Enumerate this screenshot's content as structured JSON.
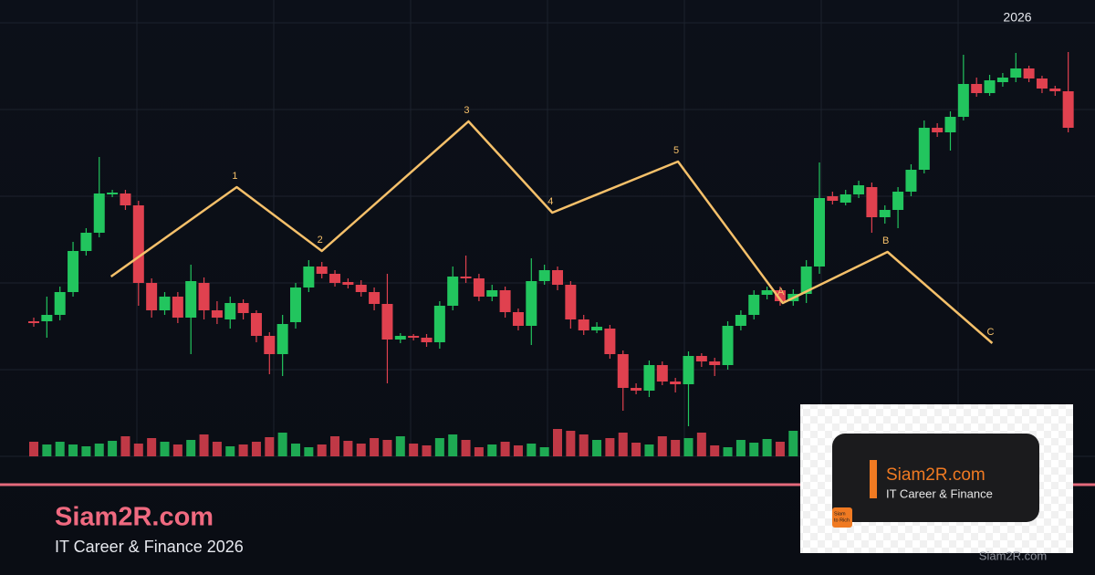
{
  "chart_data": {
    "type": "candlestick",
    "ylim": [
      0,
      500
    ],
    "y2lim": [
      0,
      40
    ],
    "up_color": "#22c55e",
    "down_color": "#e0414f",
    "year_label": "2026",
    "open": [
      148,
      148,
      155,
      180,
      225,
      245,
      287,
      288,
      275,
      190,
      160,
      175,
      152,
      190,
      160,
      150,
      168,
      157,
      132,
      112,
      147,
      185,
      208,
      200,
      191,
      188,
      180,
      167,
      128,
      132,
      130,
      125,
      165,
      197,
      195,
      175,
      182,
      158,
      143,
      192,
      204,
      188,
      150,
      138,
      140,
      112,
      75,
      72,
      100,
      82,
      79,
      110,
      104,
      100,
      143,
      155,
      177,
      182,
      170,
      178,
      208,
      285,
      278,
      287,
      295,
      262,
      270,
      290,
      314,
      360,
      355,
      372,
      408,
      398,
      410,
      415,
      425,
      414,
      403,
      400
    ],
    "high": [
      152,
      175,
      186,
      235,
      250,
      328,
      292,
      292,
      280,
      195,
      180,
      180,
      210,
      196,
      170,
      175,
      172,
      160,
      136,
      155,
      190,
      215,
      213,
      204,
      195,
      193,
      185,
      200,
      135,
      134,
      134,
      170,
      208,
      220,
      200,
      188,
      186,
      162,
      217,
      210,
      208,
      192,
      155,
      147,
      144,
      116,
      80,
      105,
      104,
      86,
      115,
      113,
      108,
      148,
      160,
      182,
      186,
      186,
      183,
      215,
      322,
      290,
      292,
      302,
      300,
      275,
      295,
      320,
      368,
      365,
      378,
      440,
      415,
      418,
      420,
      442,
      428,
      417,
      406,
      443
    ],
    "low": [
      142,
      130,
      149,
      175,
      220,
      240,
      284,
      270,
      165,
      152,
      155,
      146,
      112,
      150,
      145,
      140,
      150,
      125,
      90,
      88,
      140,
      180,
      195,
      186,
      184,
      175,
      160,
      80,
      124,
      127,
      120,
      118,
      160,
      190,
      170,
      170,
      152,
      138,
      122,
      188,
      182,
      140,
      133,
      135,
      107,
      50,
      68,
      65,
      78,
      70,
      33,
      98,
      88,
      95,
      138,
      150,
      172,
      165,
      165,
      168,
      200,
      276,
      275,
      283,
      245,
      255,
      250,
      285,
      310,
      350,
      335,
      368,
      394,
      395,
      405,
      410,
      410,
      398,
      395,
      355
    ],
    "close": [
      146,
      155,
      180,
      225,
      245,
      288,
      289,
      275,
      190,
      160,
      175,
      152,
      192,
      160,
      152,
      168,
      157,
      132,
      112,
      145,
      185,
      208,
      200,
      190,
      188,
      180,
      167,
      128,
      132,
      130,
      125,
      165,
      197,
      195,
      175,
      182,
      158,
      143,
      192,
      204,
      188,
      150,
      138,
      142,
      112,
      75,
      72,
      100,
      82,
      79,
      110,
      104,
      100,
      143,
      155,
      177,
      182,
      170,
      178,
      208,
      283,
      280,
      287,
      297,
      262,
      270,
      290,
      314,
      360,
      355,
      372,
      408,
      398,
      412,
      415,
      425,
      414,
      403,
      400,
      360
    ],
    "volume": [
      16,
      13,
      16,
      13,
      11,
      14,
      17,
      22,
      14,
      20,
      16,
      13,
      18,
      24,
      16,
      11,
      13,
      16,
      21,
      26,
      14,
      10,
      13,
      22,
      17,
      14,
      20,
      18,
      22,
      14,
      12,
      20,
      24,
      18,
      10,
      13,
      16,
      12,
      14,
      10,
      30,
      28,
      24,
      18,
      20,
      26,
      15,
      13,
      22,
      18,
      20,
      26,
      12,
      10,
      18,
      15,
      19,
      16,
      28,
      23,
      16,
      20,
      16,
      22,
      18,
      16,
      24,
      12,
      14,
      20,
      24,
      17,
      20,
      14,
      22,
      18,
      15,
      20,
      24,
      16
    ],
    "wave": {
      "color": "#f5c06a",
      "labels": [
        null,
        "1",
        "2",
        "3",
        "4",
        "5",
        "A",
        "B",
        "C"
      ],
      "x": [
        5.9,
        15.5,
        22.0,
        33.2,
        39.6,
        49.2,
        57.2,
        65.2,
        73.2
      ],
      "y": [
        197,
        295,
        225,
        367,
        267,
        323,
        168,
        224,
        124
      ]
    }
  },
  "branding": {
    "title": "Siam2R.com",
    "subtitle": "IT Career & Finance 2026",
    "badge": {
      "title": "Siam2R.com",
      "subtitle": "IT Career & Finance",
      "icon": [
        "Siam",
        "to Rich"
      ]
    },
    "watermark": "Siam2R.com"
  }
}
